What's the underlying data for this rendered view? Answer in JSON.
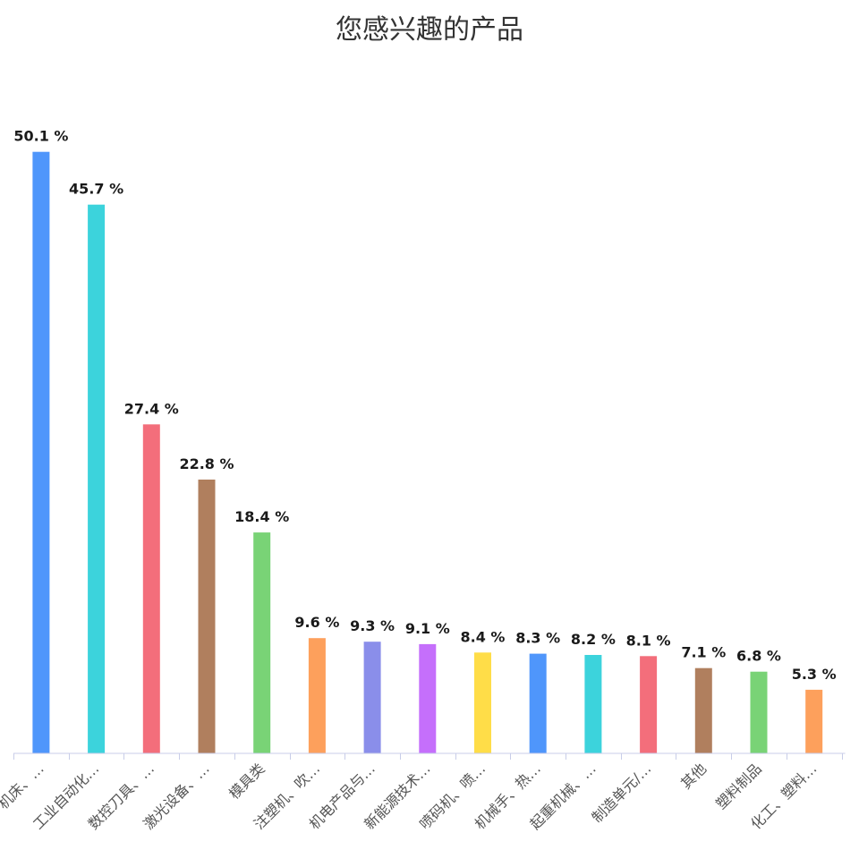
{
  "chart_data": {
    "type": "bar",
    "title": "您感兴趣的产品",
    "categories": [
      "机床、…",
      "工业自动化…",
      "数控刀具、…",
      "激光设备、…",
      "模具类",
      "注塑机、吹…",
      "机电产品与…",
      "新能源技术…",
      "喷码机、喷…",
      "机械手、热…",
      "起重机械、…",
      "制造单元/…",
      "其他",
      "塑料制品",
      "化工、塑料…"
    ],
    "values": [
      50.1,
      45.7,
      27.4,
      22.8,
      18.4,
      9.6,
      9.3,
      9.1,
      8.4,
      8.3,
      8.2,
      8.1,
      7.1,
      6.8,
      5.3
    ],
    "value_labels": [
      "50.1 %",
      "45.7 %",
      "27.4 %",
      "22.8 %",
      "18.4 %",
      "9.6 %",
      "9.3 %",
      "9.1 %",
      "8.4 %",
      "8.3 %",
      "8.2 %",
      "8.1 %",
      "7.1 %",
      "6.8 %",
      "5.3 %"
    ],
    "unit": "%",
    "ylim": [
      0,
      100
    ],
    "grid": false,
    "colors": [
      "#4f96fb",
      "#3cd3dc",
      "#f36e7b",
      "#b07f5e",
      "#79d376",
      "#fda05c",
      "#8a8eea",
      "#c56ffb",
      "#ffdd48",
      "#4f96fb",
      "#3cd3dc",
      "#f36e7b",
      "#b07f5e",
      "#79d376",
      "#fda05c"
    ],
    "axis_color": "#c8cde8"
  }
}
